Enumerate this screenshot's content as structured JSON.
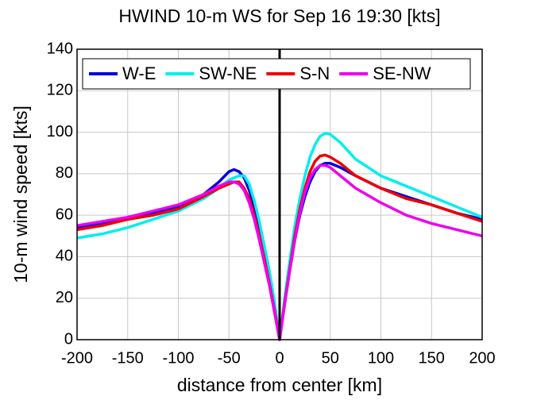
{
  "chart_data": {
    "type": "line",
    "title": "HWIND 10-m WS for Sep 16 19:30 [kts]",
    "xlabel": "distance from center [km]",
    "ylabel": "10-m wind speed [kts]",
    "x": [
      -200,
      -175,
      -150,
      -125,
      -100,
      -75,
      -60,
      -50,
      -45,
      -40,
      -35,
      -30,
      -25,
      -20,
      -15,
      -10,
      -5,
      0,
      5,
      10,
      15,
      20,
      25,
      30,
      35,
      40,
      45,
      50,
      60,
      75,
      100,
      125,
      150,
      175,
      200
    ],
    "series": [
      {
        "name": "W-E",
        "color": "#0000e0",
        "values": [
          54,
          56,
          58,
          61,
          64,
          70,
          76,
          81,
          82,
          81,
          78,
          72,
          64,
          54,
          42,
          30,
          16,
          0,
          18,
          34,
          48,
          60,
          69,
          76,
          81,
          84,
          85,
          85,
          83,
          79,
          73,
          69,
          65,
          61,
          58
        ]
      },
      {
        "name": "SW-NE",
        "color": "#00eeee",
        "values": [
          49,
          51,
          54,
          58,
          62,
          68,
          73,
          77,
          78,
          79,
          79,
          75,
          67,
          57,
          45,
          33,
          18,
          0,
          20,
          38,
          55,
          68,
          79,
          88,
          94,
          98,
          99.5,
          99,
          95,
          87,
          79,
          74,
          69,
          64,
          59
        ]
      },
      {
        "name": "S-N",
        "color": "#ee0000",
        "values": [
          53,
          55,
          58,
          60,
          63,
          69,
          73,
          75,
          76,
          76,
          73,
          68,
          60,
          50,
          39,
          27,
          14,
          0,
          18,
          34,
          50,
          63,
          73,
          81,
          86,
          88.5,
          89,
          88,
          85,
          79,
          73,
          68,
          65,
          61,
          57
        ]
      },
      {
        "name": "SE-NW",
        "color": "#ee00ee",
        "values": [
          55,
          57,
          59,
          62,
          65,
          70,
          74,
          76,
          76,
          75,
          72,
          66,
          58,
          48,
          37,
          26,
          13,
          0,
          17,
          33,
          48,
          61,
          71,
          78,
          82,
          84,
          84,
          83,
          79,
          73,
          66,
          60,
          56,
          53,
          50
        ]
      }
    ],
    "xlim": [
      -200,
      200
    ],
    "xticks": [
      -200,
      -150,
      -100,
      -50,
      0,
      50,
      100,
      150,
      200
    ],
    "ylim": [
      0,
      140
    ],
    "yticks": [
      0,
      20,
      40,
      60,
      80,
      100,
      120,
      140
    ],
    "grid": true,
    "legend": "top"
  }
}
